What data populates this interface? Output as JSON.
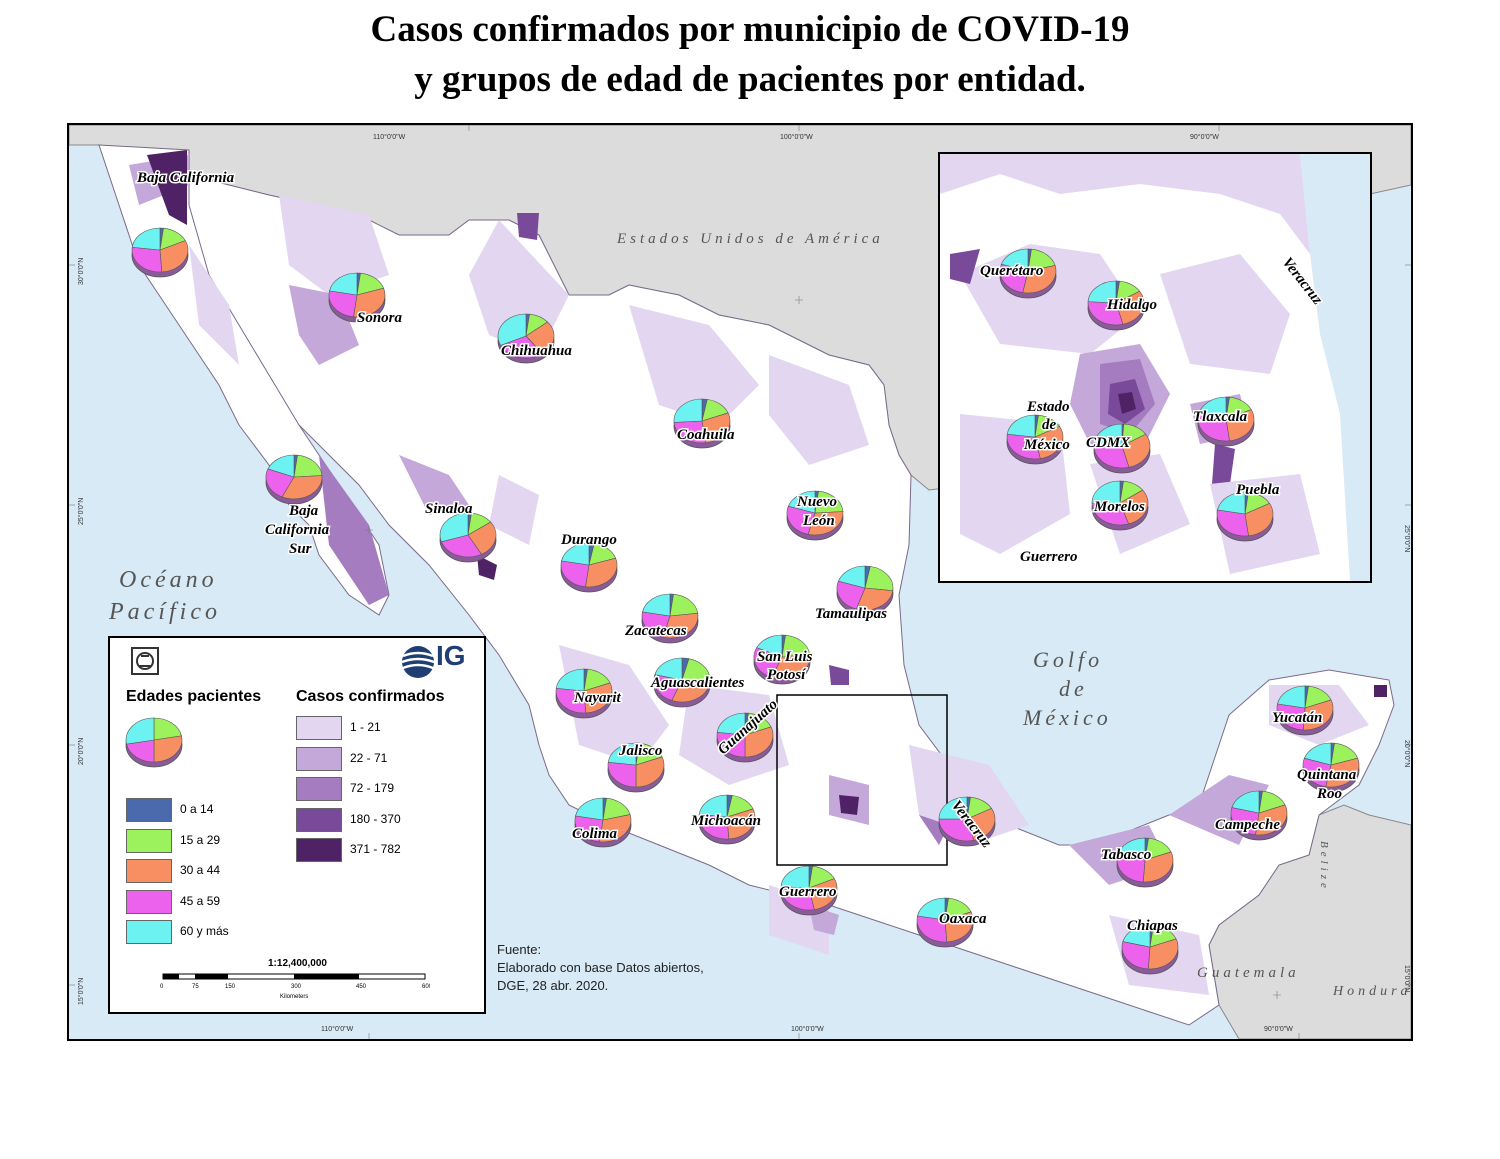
{
  "title_line1": "Casos confirmados por municipio de COVID-19",
  "title_line2": "y grupos de edad de pacientes por entidad.",
  "age_colors": [
    "#4b6aae",
    "#9cf25c",
    "#f78f62",
    "#ec62ec",
    "#6df2f2"
  ],
  "legend": {
    "ages_title": "Edades pacientes",
    "cases_title": "Casos confirmados",
    "age_groups": [
      {
        "label": "0 a 14",
        "color": "#4b6aae"
      },
      {
        "label": "15 a 29",
        "color": "#9cf25c"
      },
      {
        "label": "30 a 44",
        "color": "#f78f62"
      },
      {
        "label": "45 a 59",
        "color": "#ec62ec"
      },
      {
        "label": "60 y más",
        "color": "#6df2f2"
      }
    ],
    "case_classes": [
      {
        "label": "1 - 21",
        "color": "#e3d6f0"
      },
      {
        "label": "22 - 71",
        "color": "#c3a8d9"
      },
      {
        "label": "72 - 179",
        "color": "#a47cbf"
      },
      {
        "label": "180 - 370",
        "color": "#7a4a9a"
      },
      {
        "label": "371 - 782",
        "color": "#4f2266"
      }
    ],
    "scale": "1:12,400,000",
    "scale_ticks": [
      "0",
      "75",
      "150",
      "300",
      "450",
      "600"
    ],
    "scale_unit": "Kilometers",
    "logo_text": "IG"
  },
  "source": {
    "line1": "Fuente:",
    "line2": "Elaborado con base Datos abiertos,",
    "line3": "DGE, 28 abr. 2020."
  },
  "water_labels": {
    "usa": "Estados Unidos de América",
    "pacific_1": "Océano",
    "pacific_2": "Pacífico",
    "gulf_1": "Golfo",
    "gulf_2": "de",
    "gulf_3": "México",
    "guatemala": "Guatemala",
    "honduras": "Honduras",
    "belize": "Belize"
  },
  "graticule": {
    "lon_110": "110°0'0\"W",
    "lon_100": "100°0'0\"W",
    "lon_90": "90°0'0\"W",
    "lat_30": "30°0'0\"N",
    "lat_25": "25°0'0\"N",
    "lat_20": "20°0'0\"N",
    "lat_15": "15°0'0\"N"
  },
  "states": [
    {
      "name": "Baja California",
      "line2": ""
    },
    {
      "name": "Sonora"
    },
    {
      "name": "Chihuahua"
    },
    {
      "name": "Coahuila"
    },
    {
      "name": "Baja",
      "line2": "California",
      "line3": "Sur"
    },
    {
      "name": "Sinaloa"
    },
    {
      "name": "Durango"
    },
    {
      "name": "Nuevo",
      "line2": "León"
    },
    {
      "name": "Tamaulipas"
    },
    {
      "name": "Zacatecas"
    },
    {
      "name": "San Luis",
      "line2": "Potosí"
    },
    {
      "name": "Aguascalientes"
    },
    {
      "name": "Nayarit"
    },
    {
      "name": "Guanajuato"
    },
    {
      "name": "Jalisco"
    },
    {
      "name": "Colima"
    },
    {
      "name": "Michoacán"
    },
    {
      "name": "Veracruz"
    },
    {
      "name": "Guerrero"
    },
    {
      "name": "Oaxaca"
    },
    {
      "name": "Tabasco"
    },
    {
      "name": "Chiapas"
    },
    {
      "name": "Campeche"
    },
    {
      "name": "Yucatán"
    },
    {
      "name": "Quintana",
      "line2": "Roo"
    }
  ],
  "inset_states": [
    {
      "name": "Querétaro"
    },
    {
      "name": "Hidalgo"
    },
    {
      "name": "Veracruz"
    },
    {
      "name": "Estado",
      "line2": "de",
      "line3": "México"
    },
    {
      "name": "CDMX"
    },
    {
      "name": "Tlaxcala"
    },
    {
      "name": "Morelos"
    },
    {
      "name": "Puebla"
    },
    {
      "name": "Guerrero"
    }
  ],
  "pies": [
    {
      "state": "Baja California",
      "shares": [
        0.02,
        0.16,
        0.31,
        0.28,
        0.23
      ]
    },
    {
      "state": "Sonora",
      "shares": [
        0.02,
        0.18,
        0.32,
        0.26,
        0.22
      ]
    },
    {
      "state": "Chihuahua",
      "shares": [
        0.02,
        0.12,
        0.26,
        0.28,
        0.32
      ]
    },
    {
      "state": "Coahuila",
      "shares": [
        0.03,
        0.16,
        0.29,
        0.26,
        0.26
      ]
    },
    {
      "state": "Baja California Sur",
      "shares": [
        0.02,
        0.22,
        0.33,
        0.24,
        0.19
      ]
    },
    {
      "state": "Sinaloa",
      "shares": [
        0.02,
        0.13,
        0.27,
        0.28,
        0.3
      ]
    },
    {
      "state": "Durango",
      "shares": [
        0.03,
        0.17,
        0.32,
        0.26,
        0.22
      ]
    },
    {
      "state": "Nuevo León",
      "shares": [
        0.02,
        0.22,
        0.3,
        0.26,
        0.2
      ]
    },
    {
      "state": "Tamaulipas",
      "shares": [
        0.03,
        0.24,
        0.28,
        0.25,
        0.2
      ]
    },
    {
      "state": "Zacatecas",
      "shares": [
        0.02,
        0.21,
        0.31,
        0.24,
        0.22
      ]
    },
    {
      "state": "San Luis Potosí",
      "shares": [
        0.02,
        0.21,
        0.33,
        0.26,
        0.18
      ]
    },
    {
      "state": "Aguascalientes",
      "shares": [
        0.04,
        0.24,
        0.28,
        0.23,
        0.21
      ]
    },
    {
      "state": "Nayarit",
      "shares": [
        0.02,
        0.17,
        0.3,
        0.28,
        0.23
      ]
    },
    {
      "state": "Guanajuato",
      "shares": [
        0.02,
        0.17,
        0.31,
        0.27,
        0.23
      ]
    },
    {
      "state": "Jalisco",
      "shares": [
        0.02,
        0.17,
        0.31,
        0.27,
        0.23
      ]
    },
    {
      "state": "Colima",
      "shares": [
        0.02,
        0.19,
        0.31,
        0.26,
        0.22
      ]
    },
    {
      "state": "Michoacán",
      "shares": [
        0.03,
        0.16,
        0.3,
        0.28,
        0.23
      ]
    },
    {
      "state": "Veracruz",
      "shares": [
        0.02,
        0.15,
        0.29,
        0.29,
        0.25
      ]
    },
    {
      "state": "Guerrero",
      "shares": [
        0.02,
        0.16,
        0.29,
        0.29,
        0.24
      ]
    },
    {
      "state": "Oaxaca",
      "shares": [
        0.02,
        0.17,
        0.3,
        0.29,
        0.22
      ]
    },
    {
      "state": "Tabasco",
      "shares": [
        0.02,
        0.17,
        0.32,
        0.28,
        0.21
      ]
    },
    {
      "state": "Chiapas",
      "shares": [
        0.02,
        0.17,
        0.32,
        0.28,
        0.21
      ]
    },
    {
      "state": "Campeche",
      "shares": [
        0.02,
        0.17,
        0.33,
        0.27,
        0.21
      ]
    },
    {
      "state": "Yucatán",
      "shares": [
        0.02,
        0.17,
        0.32,
        0.27,
        0.22
      ]
    },
    {
      "state": "Quintana Roo",
      "shares": [
        0.02,
        0.18,
        0.33,
        0.27,
        0.2
      ]
    },
    {
      "state": "Querétaro",
      "shares": [
        0.02,
        0.19,
        0.32,
        0.27,
        0.2
      ]
    },
    {
      "state": "Hidalgo",
      "shares": [
        0.02,
        0.14,
        0.3,
        0.3,
        0.24
      ]
    },
    {
      "state": "Estado de México",
      "shares": [
        0.02,
        0.15,
        0.3,
        0.3,
        0.23
      ]
    },
    {
      "state": "CDMX",
      "shares": [
        0.01,
        0.15,
        0.3,
        0.3,
        0.24
      ]
    },
    {
      "state": "Tlaxcala",
      "shares": [
        0.02,
        0.16,
        0.3,
        0.3,
        0.22
      ]
    },
    {
      "state": "Morelos",
      "shares": [
        0.02,
        0.13,
        0.3,
        0.3,
        0.25
      ]
    },
    {
      "state": "Puebla",
      "shares": [
        0.02,
        0.15,
        0.31,
        0.3,
        0.22
      ]
    }
  ]
}
